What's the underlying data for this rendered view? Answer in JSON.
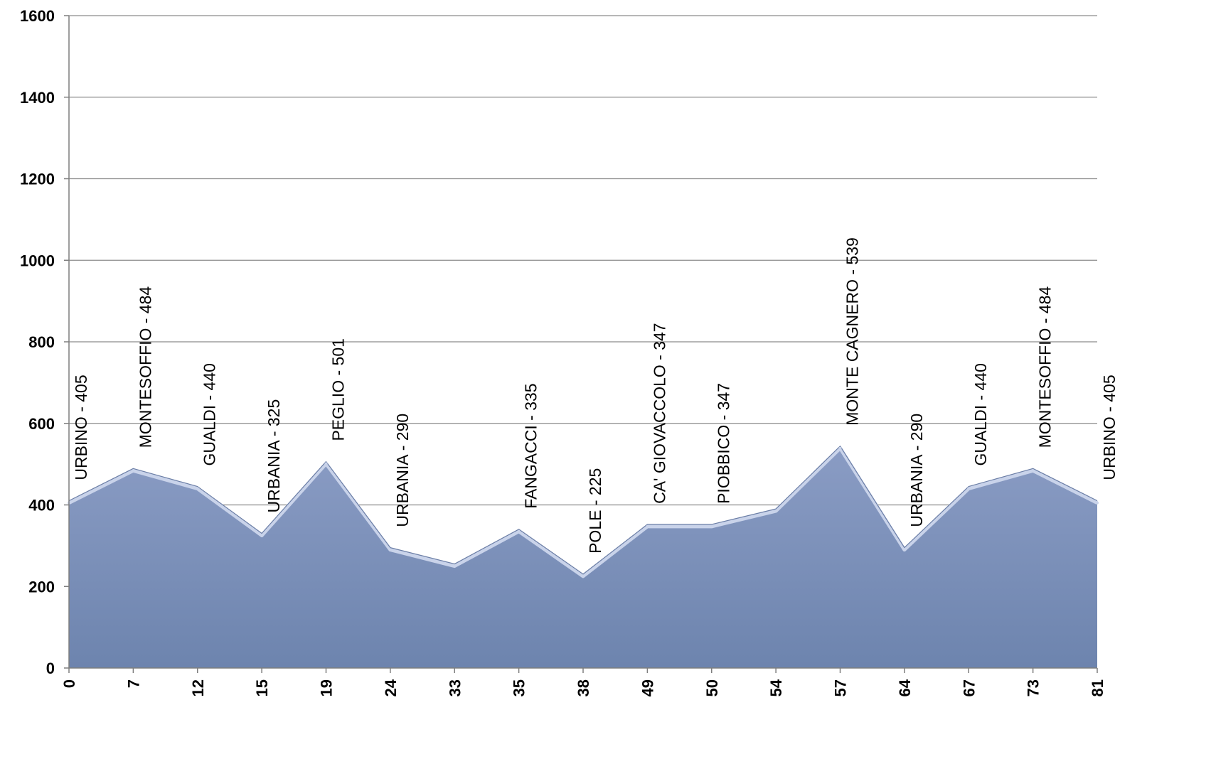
{
  "chart_data": {
    "type": "area",
    "title": "",
    "xlabel": "",
    "ylabel": "",
    "ylim": [
      0,
      1600
    ],
    "yticks": [
      0,
      200,
      400,
      600,
      800,
      1000,
      1200,
      1400,
      1600
    ],
    "grid": true,
    "categories": [
      "0",
      "7",
      "12",
      "15",
      "19",
      "24",
      "33",
      "35",
      "38",
      "49",
      "50",
      "54",
      "57",
      "64",
      "67",
      "73",
      "81"
    ],
    "values": [
      405,
      484,
      440,
      325,
      501,
      290,
      250,
      335,
      225,
      347,
      347,
      385,
      539,
      290,
      440,
      484,
      405
    ],
    "point_labels": [
      "URBINO - 405",
      "MONTESOFFIO - 484",
      "GUALDI - 440",
      "URBANIA - 325",
      "PEGLIO - 501",
      "URBANIA - 290",
      "",
      "FANGACCI - 335",
      "POLE - 225",
      "CA' GIOVACCOLO - 347",
      "PIOBBICO - 347",
      "",
      "MONTE CAGNERO - 539",
      "URBANIA - 290",
      "GUALDI - 440",
      "MONTESOFFIO - 484",
      "URBINO - 405"
    ],
    "colors": {
      "fill_top": "#8a9cc4",
      "fill_bottom": "#6d84ae",
      "edge": "#c9d3ea",
      "grid": "#8c8c8c",
      "axis": "#7f7f7f"
    }
  }
}
